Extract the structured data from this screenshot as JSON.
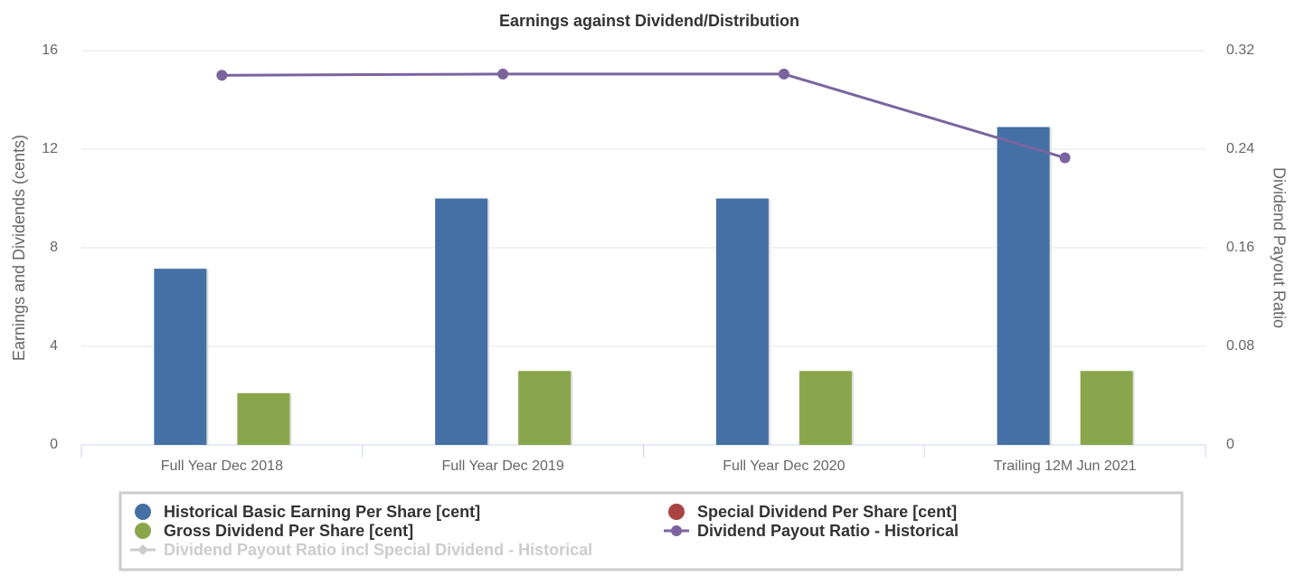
{
  "chart_data": {
    "type": "bar",
    "title": "Earnings against Dividend/Distribution",
    "categories": [
      "Full Year Dec 2018",
      "Full Year Dec 2019",
      "Full Year Dec 2020",
      "Trailing 12M Jun 2021"
    ],
    "ylabel": "Earnings and Dividends (cents)",
    "y2label": "Dividend Payout Ratio",
    "ylim": [
      0,
      16
    ],
    "yticks": [
      0,
      4,
      8,
      12,
      16
    ],
    "y2lim": [
      0,
      0.32
    ],
    "y2ticks": [
      0,
      0.08,
      0.16,
      0.24,
      0.32
    ],
    "grid": true,
    "series": [
      {
        "name": "Historical Basic Earning Per Share [cent]",
        "type": "bar",
        "color": "#4470a5",
        "values": [
          7.15,
          10,
          10,
          12.9
        ]
      },
      {
        "name": "Special Dividend Per Share [cent]",
        "type": "bar",
        "color": "#a94442",
        "values": [
          null,
          null,
          null,
          null
        ]
      },
      {
        "name": "Gross Dividend Per Share [cent]",
        "type": "bar",
        "color": "#8aa64c",
        "values": [
          2.1,
          3,
          3,
          3
        ]
      },
      {
        "name": "Dividend Payout Ratio - Historical",
        "type": "line",
        "axis": "y2",
        "color": "#7b649e",
        "values": [
          0.3,
          0.301,
          0.301,
          0.233
        ]
      },
      {
        "name": "Dividend Payout Ratio incl Special Dividend - Historical",
        "type": "line",
        "axis": "y2",
        "color": "#cccccc",
        "visible": false,
        "values": [
          null,
          null,
          null,
          null
        ]
      }
    ]
  }
}
